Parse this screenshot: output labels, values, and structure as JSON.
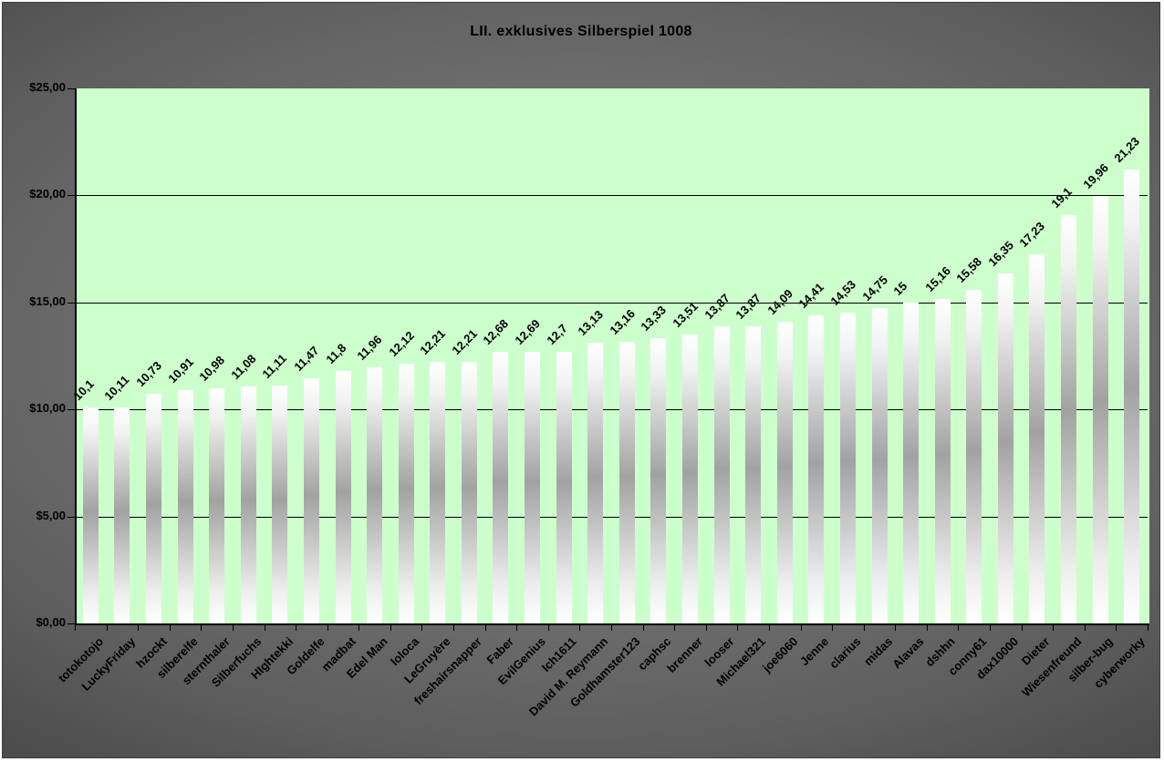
{
  "title": "LII. exklusives Silberspiel 1008",
  "colors": {
    "plot_bg": "#ccffcc",
    "outer_bg_center": "#7d7d7d",
    "outer_bg_edge": "#4a4a4a",
    "bar_edge": "#ffffff",
    "bar_mid": "#a2a2a2",
    "axis": "#000000",
    "text": "#000000"
  },
  "chart_data": {
    "type": "bar",
    "title": "LII. exklusives Silberspiel 1008",
    "categories": [
      "totokotojo",
      "LuckyFriday",
      "hzockt",
      "silberelfe",
      "sternthaler",
      "Silberfuchs",
      "HIghtekki",
      "Goldelfe",
      "madbat",
      "Edel Man",
      "loloca",
      "LeGruyère",
      "freshairsnapper",
      "Faber",
      "EvilGenius",
      "Ich1611",
      "David M. Reymann",
      "Goldhamster123",
      "caphsc",
      "brenner",
      "looser",
      "Michael321",
      "joe6060",
      "Jenne",
      "clarius",
      "midas",
      "Alavas",
      "dshhn",
      "conny61",
      "dax10000",
      "Dieter",
      "Wiesenfreund",
      "silber-bug",
      "cyberworky"
    ],
    "values": [
      10.1,
      10.11,
      10.73,
      10.91,
      10.98,
      11.08,
      11.11,
      11.47,
      11.8,
      11.96,
      12.12,
      12.21,
      12.21,
      12.68,
      12.69,
      12.7,
      13.13,
      13.16,
      13.33,
      13.51,
      13.87,
      13.87,
      14.09,
      14.41,
      14.53,
      14.75,
      15,
      15.16,
      15.58,
      16.35,
      17.23,
      19.1,
      19.96,
      21.23
    ],
    "value_labels": [
      "10,1",
      "10,11",
      "10,73",
      "10,91",
      "10,98",
      "11,08",
      "11,11",
      "11,47",
      "11,8",
      "11,96",
      "12,12",
      "12,21",
      "12,21",
      "12,68",
      "12,69",
      "12,7",
      "13,13",
      "13,16",
      "13,33",
      "13,51",
      "13,87",
      "13,87",
      "14,09",
      "14,41",
      "14,53",
      "14,75",
      "15",
      "15,16",
      "15,58",
      "16,35",
      "17,23",
      "19,1",
      "19,96",
      "21,23"
    ],
    "xlabel": "",
    "ylabel": "",
    "ylim": [
      0,
      25
    ],
    "y_tick_values": [
      25,
      20,
      15,
      10,
      5,
      0
    ],
    "y_tick_labels": [
      "$25,00",
      "$20,00",
      "$15,00",
      "$10,00",
      "$5,00",
      "$0,00"
    ],
    "grid": "horizontal",
    "legend": "none",
    "bar_label_rotation_deg": 45,
    "category_label_rotation_deg": 45
  }
}
